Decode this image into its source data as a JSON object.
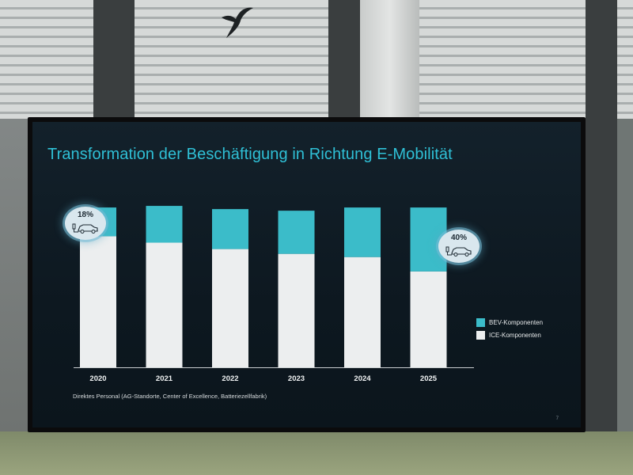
{
  "slide": {
    "title": "Transformation der Beschäftigung in Richtung E-Mobilität",
    "footnote": "Direktes Personal (AG-Standorte, Center of Excellence, Batteriezellfabrik)",
    "page_number": "7"
  },
  "badges": [
    {
      "value": "18%",
      "icon": "electric-car-charging-icon"
    },
    {
      "value": "40%",
      "icon": "electric-car-charging-icon"
    }
  ],
  "legend": [
    {
      "label": "BEV-Komponenten",
      "color": "#3bbcc9"
    },
    {
      "label": "ICE-Komponenten",
      "color": "#eceeef"
    }
  ],
  "chart_data": {
    "type": "bar",
    "stacked": true,
    "categories": [
      "2020",
      "2021",
      "2022",
      "2023",
      "2024",
      "2025"
    ],
    "series": [
      {
        "name": "ICE-Komponenten",
        "color": "#eceeef",
        "values": [
          82,
          78,
          74,
          71,
          69,
          60
        ]
      },
      {
        "name": "BEV-Komponenten",
        "color": "#3bbcc9",
        "values": [
          18,
          23,
          25,
          27,
          31,
          40
        ]
      }
    ],
    "ylim": [
      0,
      105
    ],
    "grid": false,
    "legend_position": "right"
  }
}
